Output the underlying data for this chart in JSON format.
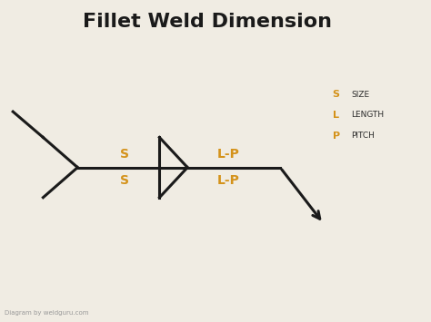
{
  "title": "Fillet Weld Dimension",
  "title_fontsize": 16,
  "title_fontweight": "bold",
  "title_color": "#1a1a1a",
  "bg_color": "#f0ece3",
  "line_color": "#1a1a1a",
  "label_color": "#d4921a",
  "legend_letter_color": "#d4921a",
  "legend_text_color": "#2a2a2a",
  "footer_text": "Diagram by weldguru.com",
  "footer_color": "#999999",
  "lw": 2.2,
  "legend": [
    {
      "letter": "S",
      "label": "SIZE"
    },
    {
      "letter": "L",
      "label": "LENGTH"
    },
    {
      "letter": "P",
      "label": "PITCH"
    }
  ],
  "label_s_above": "S",
  "label_s_below": "S",
  "label_lp_above": "L-P",
  "label_lp_below": "L-P",
  "xlim": [
    0,
    10
  ],
  "ylim": [
    0,
    7.5
  ]
}
